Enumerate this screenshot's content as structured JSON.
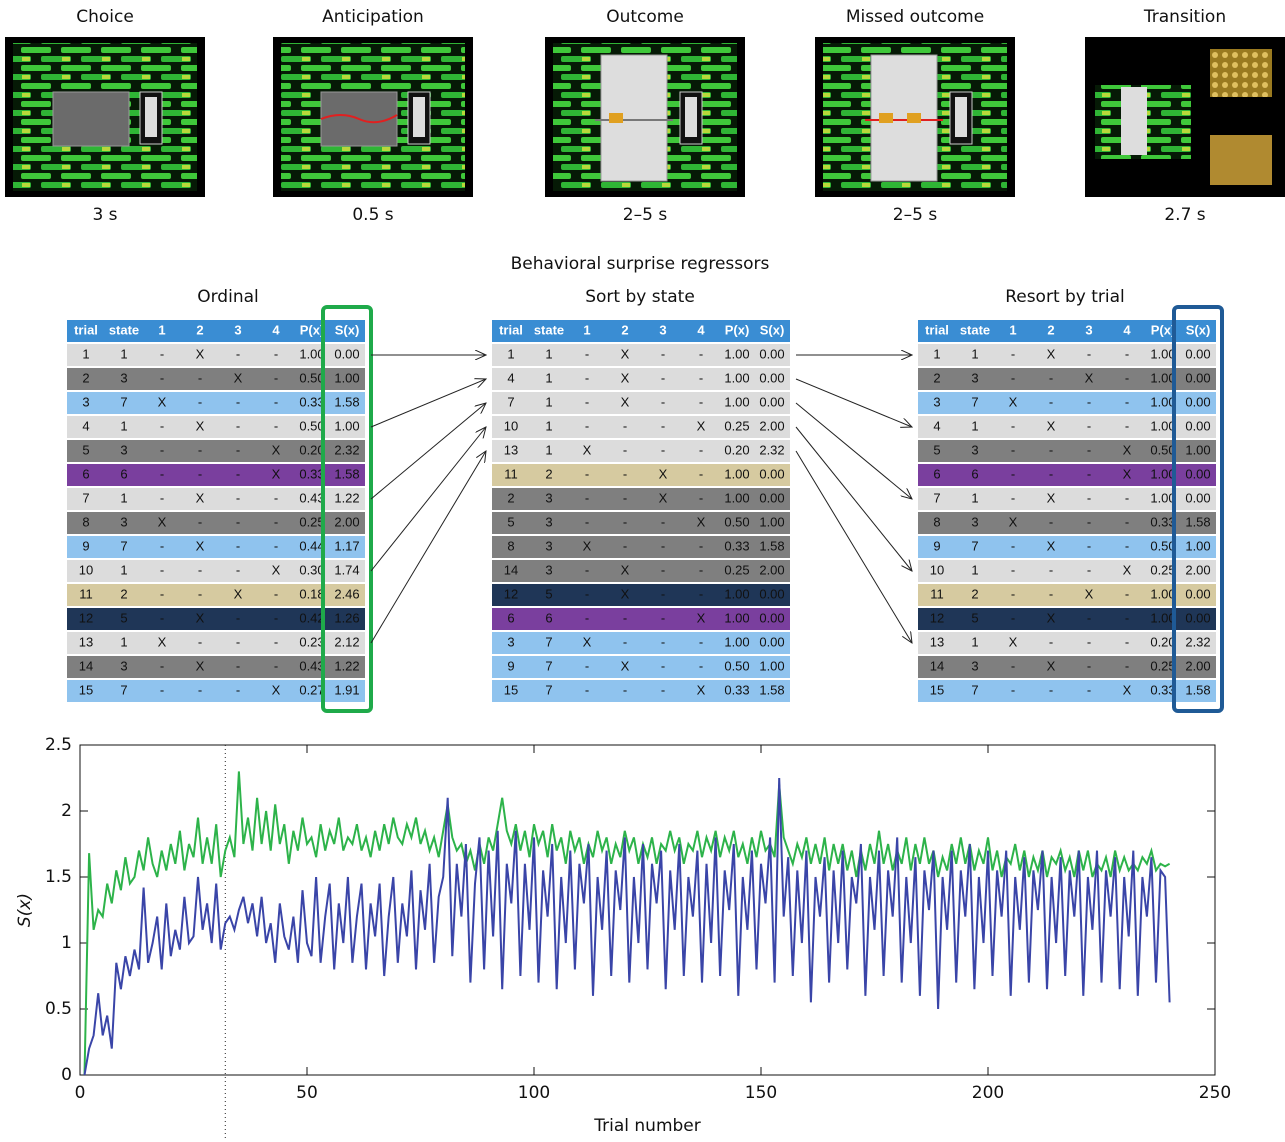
{
  "phases": [
    {
      "label": "Choice",
      "duration": "3 s"
    },
    {
      "label": "Anticipation",
      "duration": "0.5 s"
    },
    {
      "label": "Outcome",
      "duration": "2–5 s"
    },
    {
      "label": "Missed outcome",
      "duration": "2–5 s"
    },
    {
      "label": "Transition",
      "duration": "2.7 s"
    }
  ],
  "section_title": "Behavioral surprise regressors",
  "columns": [
    "trial",
    "state",
    "1",
    "2",
    "3",
    "4",
    "P(x)",
    "S(x)"
  ],
  "state_colors": {
    "1": "#dcdcdc",
    "2": "#d6caa0",
    "3": "#7f7f7f",
    "5": "#1f3657",
    "6": "#7a3f9e",
    "7": "#8fc3ee"
  },
  "tables": [
    {
      "title": "Ordinal",
      "highlight": "#1faa4a",
      "rows": [
        [
          "1",
          "1",
          "-",
          "X",
          "-",
          "-",
          "1.00",
          "0.00"
        ],
        [
          "2",
          "3",
          "-",
          "-",
          "X",
          "-",
          "0.50",
          "1.00"
        ],
        [
          "3",
          "7",
          "X",
          "-",
          "-",
          "-",
          "0.33",
          "1.58"
        ],
        [
          "4",
          "1",
          "-",
          "X",
          "-",
          "-",
          "0.50",
          "1.00"
        ],
        [
          "5",
          "3",
          "-",
          "-",
          "-",
          "X",
          "0.20",
          "2.32"
        ],
        [
          "6",
          "6",
          "-",
          "-",
          "-",
          "X",
          "0.33",
          "1.58"
        ],
        [
          "7",
          "1",
          "-",
          "X",
          "-",
          "-",
          "0.43",
          "1.22"
        ],
        [
          "8",
          "3",
          "X",
          "-",
          "-",
          "-",
          "0.25",
          "2.00"
        ],
        [
          "9",
          "7",
          "-",
          "X",
          "-",
          "-",
          "0.44",
          "1.17"
        ],
        [
          "10",
          "1",
          "-",
          "-",
          "-",
          "X",
          "0.30",
          "1.74"
        ],
        [
          "11",
          "2",
          "-",
          "-",
          "X",
          "-",
          "0.18",
          "2.46"
        ],
        [
          "12",
          "5",
          "-",
          "X",
          "-",
          "-",
          "0.42",
          "1.26"
        ],
        [
          "13",
          "1",
          "X",
          "-",
          "-",
          "-",
          "0.23",
          "2.12"
        ],
        [
          "14",
          "3",
          "-",
          "X",
          "-",
          "-",
          "0.43",
          "1.22"
        ],
        [
          "15",
          "7",
          "-",
          "-",
          "-",
          "X",
          "0.27",
          "1.91"
        ]
      ]
    },
    {
      "title": "Sort by state",
      "rows": [
        [
          "1",
          "1",
          "-",
          "X",
          "-",
          "-",
          "1.00",
          "0.00"
        ],
        [
          "4",
          "1",
          "-",
          "X",
          "-",
          "-",
          "1.00",
          "0.00"
        ],
        [
          "7",
          "1",
          "-",
          "X",
          "-",
          "-",
          "1.00",
          "0.00"
        ],
        [
          "10",
          "1",
          "-",
          "-",
          "-",
          "X",
          "0.25",
          "2.00"
        ],
        [
          "13",
          "1",
          "X",
          "-",
          "-",
          "-",
          "0.20",
          "2.32"
        ],
        [
          "11",
          "2",
          "-",
          "-",
          "X",
          "-",
          "1.00",
          "0.00"
        ],
        [
          "2",
          "3",
          "-",
          "-",
          "X",
          "-",
          "1.00",
          "0.00"
        ],
        [
          "5",
          "3",
          "-",
          "-",
          "-",
          "X",
          "0.50",
          "1.00"
        ],
        [
          "8",
          "3",
          "X",
          "-",
          "-",
          "-",
          "0.33",
          "1.58"
        ],
        [
          "14",
          "3",
          "-",
          "X",
          "-",
          "-",
          "0.25",
          "2.00"
        ],
        [
          "12",
          "5",
          "-",
          "X",
          "-",
          "-",
          "1.00",
          "0.00"
        ],
        [
          "6",
          "6",
          "-",
          "-",
          "-",
          "X",
          "1.00",
          "0.00"
        ],
        [
          "3",
          "7",
          "X",
          "-",
          "-",
          "-",
          "1.00",
          "0.00"
        ],
        [
          "9",
          "7",
          "-",
          "X",
          "-",
          "-",
          "0.50",
          "1.00"
        ],
        [
          "15",
          "7",
          "-",
          "-",
          "-",
          "X",
          "0.33",
          "1.58"
        ]
      ]
    },
    {
      "title": "Resort by trial",
      "highlight": "#1f5a96",
      "rows": [
        [
          "1",
          "1",
          "-",
          "X",
          "-",
          "-",
          "1.00",
          "0.00"
        ],
        [
          "2",
          "3",
          "-",
          "-",
          "X",
          "-",
          "1.00",
          "0.00"
        ],
        [
          "3",
          "7",
          "X",
          "-",
          "-",
          "-",
          "1.00",
          "0.00"
        ],
        [
          "4",
          "1",
          "-",
          "X",
          "-",
          "-",
          "1.00",
          "0.00"
        ],
        [
          "5",
          "3",
          "-",
          "-",
          "-",
          "X",
          "0.50",
          "1.00"
        ],
        [
          "6",
          "6",
          "-",
          "-",
          "-",
          "X",
          "1.00",
          "0.00"
        ],
        [
          "7",
          "1",
          "-",
          "X",
          "-",
          "-",
          "1.00",
          "0.00"
        ],
        [
          "8",
          "3",
          "X",
          "-",
          "-",
          "-",
          "0.33",
          "1.58"
        ],
        [
          "9",
          "7",
          "-",
          "X",
          "-",
          "-",
          "0.50",
          "1.00"
        ],
        [
          "10",
          "1",
          "-",
          "-",
          "-",
          "X",
          "0.25",
          "2.00"
        ],
        [
          "11",
          "2",
          "-",
          "-",
          "X",
          "-",
          "1.00",
          "0.00"
        ],
        [
          "12",
          "5",
          "-",
          "X",
          "-",
          "-",
          "1.00",
          "0.00"
        ],
        [
          "13",
          "1",
          "X",
          "-",
          "-",
          "-",
          "0.20",
          "2.32"
        ],
        [
          "14",
          "3",
          "-",
          "X",
          "-",
          "-",
          "0.25",
          "2.00"
        ],
        [
          "15",
          "7",
          "-",
          "-",
          "-",
          "X",
          "0.33",
          "1.58"
        ]
      ]
    }
  ],
  "chart_data": {
    "type": "line",
    "xlabel": "Trial number",
    "ylabel": "S(x)",
    "xlim": [
      0,
      250
    ],
    "ylim": [
      0,
      2.5
    ],
    "xticks": [
      0,
      50,
      100,
      150,
      200,
      250
    ],
    "yticks": [
      0,
      0.5,
      1,
      1.5,
      2,
      2.5
    ],
    "vline": 32,
    "x": [
      1,
      2,
      3,
      4,
      5,
      6,
      7,
      8,
      9,
      10,
      11,
      12,
      13,
      14,
      15,
      16,
      17,
      18,
      19,
      20,
      21,
      22,
      23,
      24,
      25,
      26,
      27,
      28,
      29,
      30,
      31,
      32,
      33,
      34,
      35,
      36,
      37,
      38,
      39,
      40,
      41,
      42,
      43,
      44,
      45,
      46,
      47,
      48,
      49,
      50,
      51,
      52,
      53,
      54,
      55,
      56,
      57,
      58,
      59,
      60,
      61,
      62,
      63,
      64,
      65,
      66,
      67,
      68,
      69,
      70,
      71,
      72,
      73,
      74,
      75,
      76,
      77,
      78,
      79,
      80,
      81,
      82,
      83,
      84,
      85,
      86,
      87,
      88,
      89,
      90,
      91,
      92,
      93,
      94,
      95,
      96,
      97,
      98,
      99,
      100,
      101,
      102,
      103,
      104,
      105,
      106,
      107,
      108,
      109,
      110,
      111,
      112,
      113,
      114,
      115,
      116,
      117,
      118,
      119,
      120,
      121,
      122,
      123,
      124,
      125,
      126,
      127,
      128,
      129,
      130,
      131,
      132,
      133,
      134,
      135,
      136,
      137,
      138,
      139,
      140,
      141,
      142,
      143,
      144,
      145,
      146,
      147,
      148,
      149,
      150,
      151,
      152,
      153,
      154,
      155,
      156,
      157,
      158,
      159,
      160,
      161,
      162,
      163,
      164,
      165,
      166,
      167,
      168,
      169,
      170,
      171,
      172,
      173,
      174,
      175,
      176,
      177,
      178,
      179,
      180,
      181,
      182,
      183,
      184,
      185,
      186,
      187,
      188,
      189,
      190,
      191,
      192,
      193,
      194,
      195,
      196,
      197,
      198,
      199,
      200,
      201,
      202,
      203,
      204,
      205,
      206,
      207,
      208,
      209,
      210,
      211,
      212,
      213,
      214,
      215,
      216,
      217,
      218,
      219,
      220,
      221,
      222,
      223,
      224,
      225,
      226,
      227,
      228,
      229,
      230,
      231,
      232,
      233,
      234,
      235,
      236,
      237,
      238,
      239,
      240
    ],
    "series": [
      {
        "color": "#2db34a",
        "values": [
          0,
          1.68,
          1.1,
          1.25,
          1.2,
          1.45,
          1.3,
          1.55,
          1.4,
          1.65,
          1.45,
          1.5,
          1.7,
          1.55,
          1.8,
          1.6,
          1.5,
          1.7,
          1.55,
          1.75,
          1.6,
          1.85,
          1.55,
          1.75,
          1.65,
          1.95,
          1.6,
          1.8,
          1.6,
          1.9,
          1.5,
          1.7,
          1.8,
          1.65,
          2.3,
          1.75,
          1.95,
          1.7,
          2.1,
          1.75,
          2.0,
          1.7,
          2.05,
          1.75,
          1.9,
          1.6,
          1.85,
          1.7,
          1.95,
          1.75,
          1.8,
          1.65,
          1.9,
          1.7,
          1.85,
          1.75,
          1.95,
          1.7,
          1.8,
          1.75,
          1.9,
          1.7,
          1.8,
          1.65,
          1.85,
          1.7,
          1.9,
          1.75,
          1.95,
          1.8,
          1.75,
          1.9,
          1.8,
          1.95,
          1.75,
          1.85,
          1.7,
          1.8,
          1.65,
          1.85,
          2.05,
          1.8,
          1.7,
          1.75,
          1.6,
          1.7,
          1.55,
          1.75,
          1.6,
          1.8,
          1.7,
          1.9,
          2.1,
          1.85,
          1.75,
          1.9,
          1.7,
          1.85,
          1.65,
          1.9,
          1.75,
          1.85,
          1.65,
          1.9,
          1.7,
          1.8,
          1.6,
          1.85,
          1.7,
          1.8,
          1.6,
          1.75,
          1.65,
          1.85,
          1.7,
          1.8,
          1.6,
          1.75,
          1.65,
          1.85,
          1.7,
          1.8,
          1.6,
          1.75,
          1.65,
          1.8,
          1.6,
          1.75,
          1.7,
          1.85,
          1.7,
          1.8,
          1.6,
          1.75,
          1.7,
          1.85,
          1.65,
          1.8,
          1.7,
          1.85,
          1.65,
          1.8,
          1.7,
          1.85,
          1.65,
          1.75,
          1.6,
          1.8,
          1.65,
          1.85,
          1.7,
          1.75,
          1.65,
          2.2,
          1.8,
          1.7,
          1.6,
          1.75,
          1.65,
          1.8,
          1.6,
          1.75,
          1.6,
          1.8,
          1.55,
          1.75,
          1.6,
          1.75,
          1.55,
          1.7,
          1.5,
          1.7,
          1.55,
          1.75,
          1.6,
          1.85,
          1.6,
          1.75,
          1.55,
          1.7,
          1.6,
          1.8,
          1.55,
          1.75,
          1.6,
          1.8,
          1.6,
          1.7,
          1.5,
          1.65,
          1.55,
          1.75,
          1.6,
          1.8,
          1.6,
          1.75,
          1.55,
          1.7,
          1.6,
          1.8,
          1.55,
          1.7,
          1.5,
          1.65,
          1.6,
          1.75,
          1.55,
          1.7,
          1.5,
          1.65,
          1.55,
          1.7,
          1.5,
          1.65,
          1.6,
          1.7,
          1.55,
          1.65,
          1.5,
          1.7,
          1.55,
          1.7,
          1.5,
          1.6,
          1.55,
          1.65,
          1.5,
          1.7,
          1.55,
          1.65,
          1.55,
          1.6,
          1.55,
          1.65,
          1.6,
          1.7,
          1.55,
          1.6,
          1.58,
          1.6
        ]
      },
      {
        "color": "#3a45a8",
        "values": [
          0,
          0.2,
          0.3,
          0.62,
          0.3,
          0.45,
          0.2,
          0.85,
          0.65,
          0.9,
          0.75,
          0.95,
          0.8,
          1.42,
          0.85,
          1.0,
          1.2,
          0.8,
          1.3,
          0.9,
          1.1,
          0.95,
          1.35,
          1.0,
          1.05,
          1.5,
          1.1,
          1.3,
          1.0,
          1.45,
          0.95,
          1.15,
          1.2,
          1.1,
          1.25,
          1.35,
          1.15,
          1.3,
          1.05,
          1.35,
          1.0,
          1.15,
          0.85,
          1.3,
          1.05,
          0.95,
          1.2,
          0.85,
          1.4,
          1.0,
          0.9,
          1.5,
          0.85,
          1.2,
          1.45,
          0.8,
          1.3,
          1.0,
          1.5,
          0.85,
          1.2,
          1.45,
          0.8,
          1.3,
          1.05,
          1.45,
          0.75,
          1.2,
          1.5,
          0.85,
          1.3,
          1.05,
          1.55,
          0.8,
          1.4,
          1.1,
          1.6,
          0.85,
          1.35,
          1.5,
          2.1,
          0.9,
          1.6,
          1.2,
          1.75,
          0.7,
          1.45,
          1.8,
          0.8,
          1.7,
          1.05,
          1.85,
          0.65,
          1.6,
          1.3,
          1.85,
          0.75,
          1.6,
          1.1,
          1.8,
          0.7,
          1.55,
          1.2,
          1.75,
          0.65,
          1.5,
          1.0,
          1.7,
          0.8,
          1.6,
          1.3,
          1.75,
          0.6,
          1.5,
          1.1,
          1.7,
          0.75,
          1.55,
          1.25,
          1.8,
          0.7,
          1.5,
          1.0,
          1.75,
          0.8,
          1.6,
          1.3,
          1.7,
          0.65,
          1.55,
          1.1,
          1.75,
          0.75,
          1.5,
          1.2,
          1.7,
          0.7,
          1.6,
          1.0,
          1.8,
          0.75,
          1.55,
          1.25,
          1.75,
          0.6,
          1.5,
          1.1,
          1.7,
          0.8,
          1.6,
          1.3,
          1.8,
          0.7,
          2.25,
          1.2,
          1.65,
          0.75,
          1.55,
          1.0,
          1.7,
          0.55,
          1.5,
          1.2,
          1.65,
          0.7,
          1.55,
          1.0,
          1.7,
          0.8,
          1.5,
          1.3,
          1.75,
          0.6,
          1.5,
          1.1,
          1.7,
          0.75,
          1.55,
          1.2,
          1.8,
          0.7,
          1.5,
          1.0,
          1.65,
          0.6,
          1.55,
          1.25,
          1.7,
          0.5,
          1.5,
          1.1,
          1.7,
          0.7,
          1.55,
          1.2,
          1.75,
          0.65,
          1.5,
          1.0,
          1.7,
          0.75,
          1.55,
          1.2,
          1.7,
          0.6,
          1.5,
          1.1,
          1.65,
          0.7,
          1.55,
          1.25,
          1.7,
          0.65,
          1.5,
          1.0,
          1.65,
          0.75,
          1.55,
          1.2,
          1.7,
          0.6,
          1.5,
          1.1,
          1.7,
          0.7,
          1.55,
          1.2,
          1.65,
          0.65,
          1.5,
          1.05,
          1.7,
          0.6,
          1.5,
          1.2,
          1.65,
          0.7,
          1.55,
          1.5,
          0.55
        ]
      }
    ]
  }
}
